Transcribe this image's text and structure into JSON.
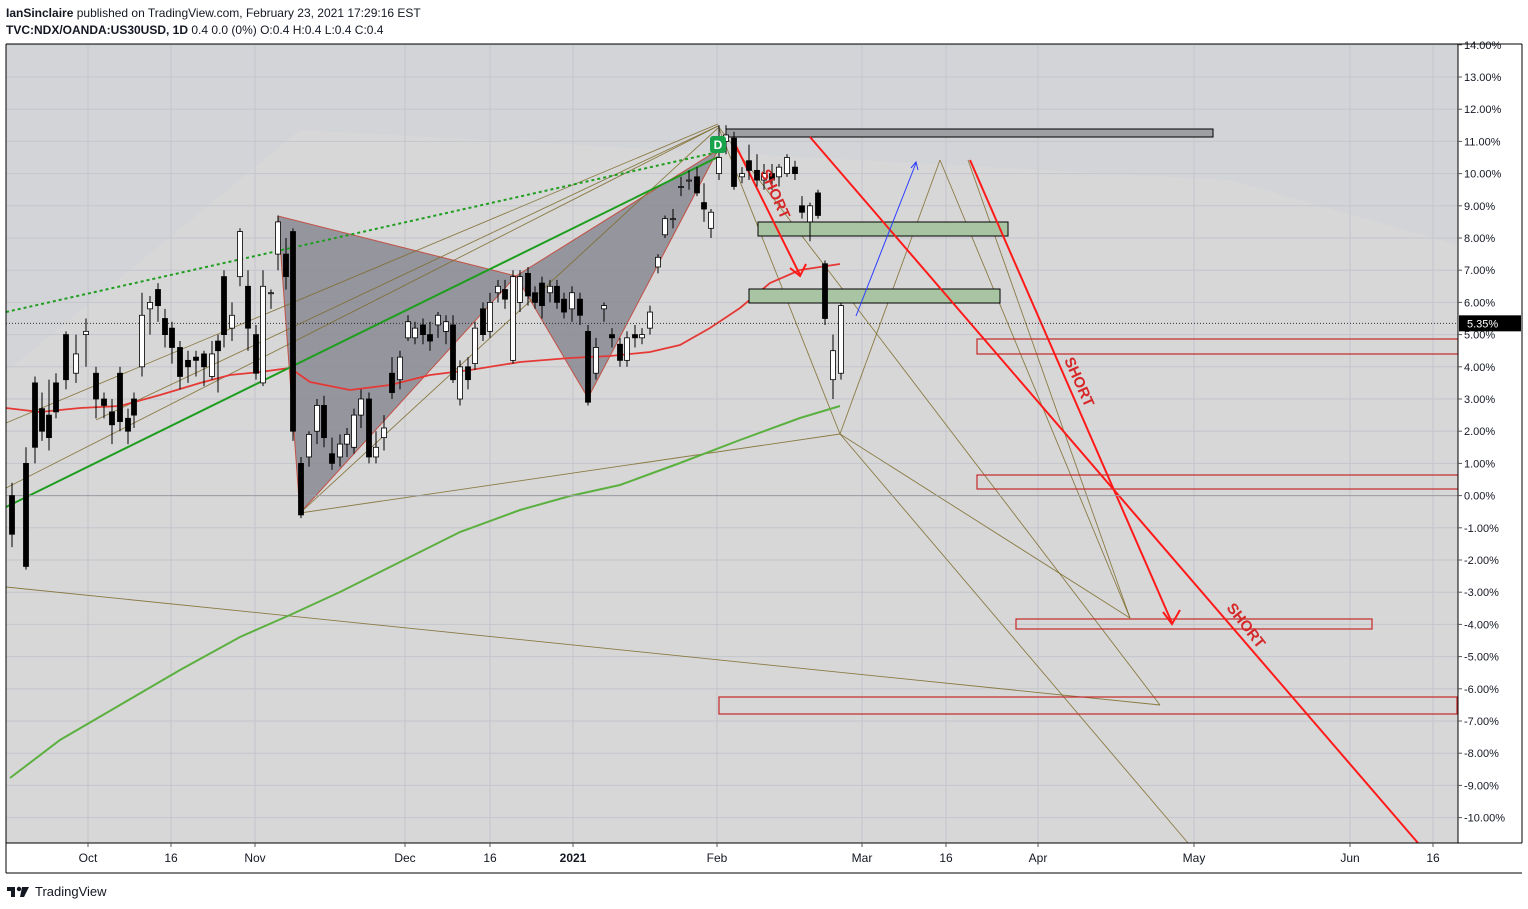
{
  "header": {
    "author": "IanSinclaire",
    "published_text": "published on TradingView.com, February 23, 2021 17:29:16 EST",
    "symbol": "TVC:NDX/OANDA:US30USD, 1D",
    "quote": "0.4 0.0 (0%) O:0.4 H:0.4 L:0.4 C:0.4"
  },
  "footer": {
    "brand": "TradingView"
  },
  "chart_data": {
    "type": "candlestick",
    "y_unit": "%",
    "ylim": [
      -11.0,
      14.0
    ],
    "y_ticks": [
      "14.00%",
      "13.00%",
      "12.00%",
      "11.00%",
      "10.00%",
      "9.00%",
      "8.00%",
      "7.00%",
      "6.00%",
      "5.00%",
      "4.00%",
      "3.00%",
      "2.00%",
      "1.00%",
      "0.00%",
      "-1.00%",
      "-2.00%",
      "-3.00%",
      "-4.00%",
      "-5.00%",
      "-6.00%",
      "-7.00%",
      "-8.00%",
      "-9.00%",
      "-10.00%"
    ],
    "x_ticks": [
      "Oct",
      "16",
      "Nov",
      "Dec",
      "16",
      "2021",
      "Feb",
      "Mar",
      "16",
      "Apr",
      "May",
      "Jun",
      "16"
    ],
    "last_price_label": "5.35%",
    "last_price": 5.35,
    "annotations": [
      "SHORT",
      "SHORT",
      "SHORT"
    ],
    "pattern_point_label": "D",
    "colors": {
      "up": "#ffffff",
      "down": "#000000",
      "ma_fast": "#e53935",
      "ma_slow": "#4caf50",
      "trendline": "#1e9e1e",
      "short_arrow": "#ff1a1a",
      "pattern": "#7d6b2a"
    }
  }
}
